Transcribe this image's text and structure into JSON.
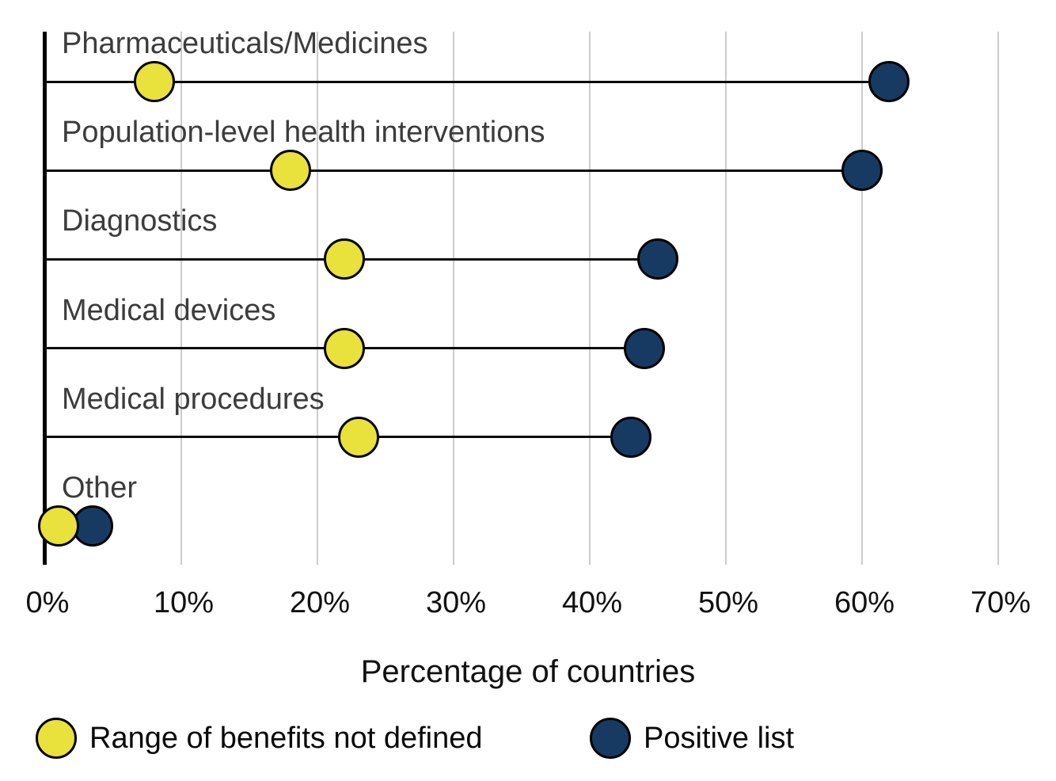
{
  "chart_data": {
    "type": "dumbbell",
    "title": "",
    "xlabel": "Percentage of countries",
    "ylabel": "",
    "categories": [
      "Pharmaceuticals/Medicines",
      "Population-level health interventions",
      "Diagnostics",
      "Medical devices",
      "Medical procedures",
      "Other"
    ],
    "series": [
      {
        "name": "Range of benefits not defined",
        "color": "#e9e13c",
        "values": [
          8,
          18,
          22,
          22,
          23,
          1
        ]
      },
      {
        "name": "Positive list",
        "color": "#173a63",
        "values": [
          62,
          60,
          45,
          44,
          43,
          3.5
        ]
      }
    ],
    "x_ticks": [
      {
        "label": "0%",
        "value": 0
      },
      {
        "label": "10%",
        "value": 10
      },
      {
        "label": "20%",
        "value": 20
      },
      {
        "label": "30%",
        "value": 30
      },
      {
        "label": "40%",
        "value": 40
      },
      {
        "label": "50%",
        "value": 50
      },
      {
        "label": "60%",
        "value": 60
      },
      {
        "label": "70%",
        "value": 70
      }
    ],
    "xlim": [
      0,
      74
    ],
    "grid": true,
    "legend_position": "bottom"
  },
  "legend": {
    "items": [
      {
        "label": "Range of benefits not defined",
        "color": "#e9e13c"
      },
      {
        "label": "Positive list",
        "color": "#173a63"
      }
    ]
  },
  "colors": {
    "gridline": "#cccccc",
    "axis": "#000000",
    "connector_line": "#0a0a0a",
    "category_text": "#3c3c3c",
    "tick_text": "#111111"
  }
}
